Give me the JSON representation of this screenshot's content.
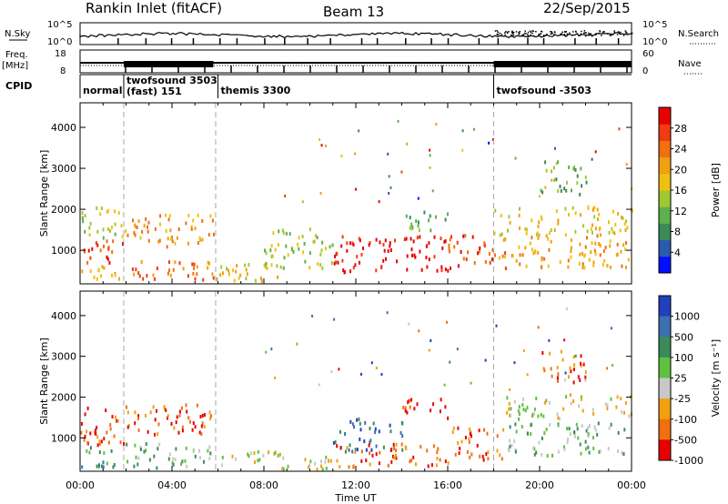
{
  "header": {
    "station": "Rankin Inlet (fitACF)",
    "beam": "Beam 13",
    "date": "22/Sep/2015"
  },
  "top_panels": {
    "nsky_label": "N.Sky",
    "nsky_ticks": [
      "10^5",
      "10^0"
    ],
    "nsearch_label": "N.Search",
    "nsearch_ticks": [
      "10^5",
      "10^0"
    ],
    "freq_label": "Freq.",
    "freq_unit": "[MHz]",
    "freq_ticks": [
      "18",
      "8"
    ],
    "nave_label": "Nave",
    "nave_ticks": [
      "60",
      "0"
    ],
    "cpid_label": "CPID"
  },
  "cpid_modes": [
    {
      "label": "normal",
      "start_hour": 0.0
    },
    {
      "label": "twofsound  3503",
      "sub": "(fast)  151",
      "start_hour": 1.9
    },
    {
      "label": "themis  3300",
      "start_hour": 6.0
    },
    {
      "label": "twofsound  -3503",
      "start_hour": 18.0
    }
  ],
  "chart_data": [
    {
      "type": "heatmap",
      "quantity": "Power",
      "xlabel": "",
      "ylabel": "Slant Range [km]",
      "xlim": [
        0,
        24
      ],
      "ylim": [
        180,
        4600
      ],
      "y_ticks": [
        "1000",
        "2000",
        "3000",
        "4000"
      ],
      "colorbar": {
        "label": "Power [dB]",
        "ticks": [
          "4",
          "8",
          "12",
          "16",
          "20",
          "24",
          "28"
        ],
        "colors": [
          "#0010ff",
          "#2a5bb0",
          "#3c8a5a",
          "#5fb04a",
          "#a0c830",
          "#f0c010",
          "#f0a010",
          "#f07010",
          "#f03a10",
          "#e80000"
        ]
      },
      "regions": [
        {
          "x0": 0.0,
          "x1": 1.9,
          "y0": 700,
          "y1": 1300,
          "level": 8
        },
        {
          "x0": 0.0,
          "x1": 1.9,
          "y0": 1300,
          "y1": 2100,
          "level": 4
        },
        {
          "x0": 0.0,
          "x1": 1.9,
          "y0": 300,
          "y1": 700,
          "level": 6
        },
        {
          "x0": 1.9,
          "x1": 5.8,
          "y0": 1100,
          "y1": 1900,
          "level": 6
        },
        {
          "x0": 1.9,
          "x1": 5.8,
          "y0": 300,
          "y1": 800,
          "level": 7
        },
        {
          "x0": 5.8,
          "x1": 9.0,
          "y0": 250,
          "y1": 700,
          "level": 5
        },
        {
          "x0": 8.0,
          "x1": 11.0,
          "y0": 600,
          "y1": 1600,
          "level": 4
        },
        {
          "x0": 11.0,
          "x1": 16.0,
          "y0": 500,
          "y1": 1400,
          "level": 9
        },
        {
          "x0": 14.0,
          "x1": 16.0,
          "y0": 1500,
          "y1": 2000,
          "level": 3
        },
        {
          "x0": 16.0,
          "x1": 18.5,
          "y0": 600,
          "y1": 1400,
          "level": 8
        },
        {
          "x0": 18.0,
          "x1": 24.0,
          "y0": 1400,
          "y1": 2100,
          "level": 5
        },
        {
          "x0": 18.0,
          "x1": 24.0,
          "y0": 600,
          "y1": 1400,
          "level": 6
        },
        {
          "x0": 20.0,
          "x1": 22.0,
          "y0": 2400,
          "y1": 3200,
          "level": 3
        }
      ]
    },
    {
      "type": "heatmap",
      "quantity": "Velocity",
      "xlabel": "Time UT",
      "ylabel": "Slant Range [km]",
      "xlim": [
        0,
        24
      ],
      "ylim": [
        180,
        4600
      ],
      "x_ticks": [
        "00:00",
        "04:00",
        "08:00",
        "12:00",
        "16:00",
        "20:00",
        "00:00"
      ],
      "y_ticks": [
        "1000",
        "2000",
        "3000",
        "4000"
      ],
      "colorbar": {
        "label": "Velocity [m s⁻¹]",
        "ticks": [
          "1000",
          "500",
          "100",
          "25",
          "-25",
          "-100",
          "-500",
          "-1000"
        ],
        "colors": [
          "#2040c0",
          "#3c70b0",
          "#3c8a5a",
          "#60c040",
          "#c8c8c8",
          "#f0a010",
          "#f07010",
          "#e80000"
        ]
      },
      "regions": [
        {
          "x0": 0.0,
          "x1": 1.9,
          "y0": 800,
          "y1": 1800,
          "level": 6
        },
        {
          "x0": 0.0,
          "x1": 1.9,
          "y0": 300,
          "y1": 800,
          "level": 2
        },
        {
          "x0": 1.9,
          "x1": 5.8,
          "y0": 1100,
          "y1": 1900,
          "level": 6
        },
        {
          "x0": 1.9,
          "x1": 5.8,
          "y0": 300,
          "y1": 900,
          "level": 3
        },
        {
          "x0": 5.8,
          "x1": 11.0,
          "y0": 250,
          "y1": 700,
          "level": 4
        },
        {
          "x0": 11.0,
          "x1": 14.0,
          "y0": 700,
          "y1": 1500,
          "level": 1
        },
        {
          "x0": 11.0,
          "x1": 16.0,
          "y0": 300,
          "y1": 900,
          "level": 6
        },
        {
          "x0": 14.0,
          "x1": 16.0,
          "y0": 1500,
          "y1": 2000,
          "level": 7
        },
        {
          "x0": 16.0,
          "x1": 18.5,
          "y0": 500,
          "y1": 1300,
          "level": 6
        },
        {
          "x0": 18.5,
          "x1": 24.0,
          "y0": 1500,
          "y1": 2100,
          "level": 4
        },
        {
          "x0": 18.5,
          "x1": 24.0,
          "y0": 600,
          "y1": 1400,
          "level": 3
        },
        {
          "x0": 20.0,
          "x1": 22.0,
          "y0": 2400,
          "y1": 3200,
          "level": 6
        }
      ]
    }
  ]
}
